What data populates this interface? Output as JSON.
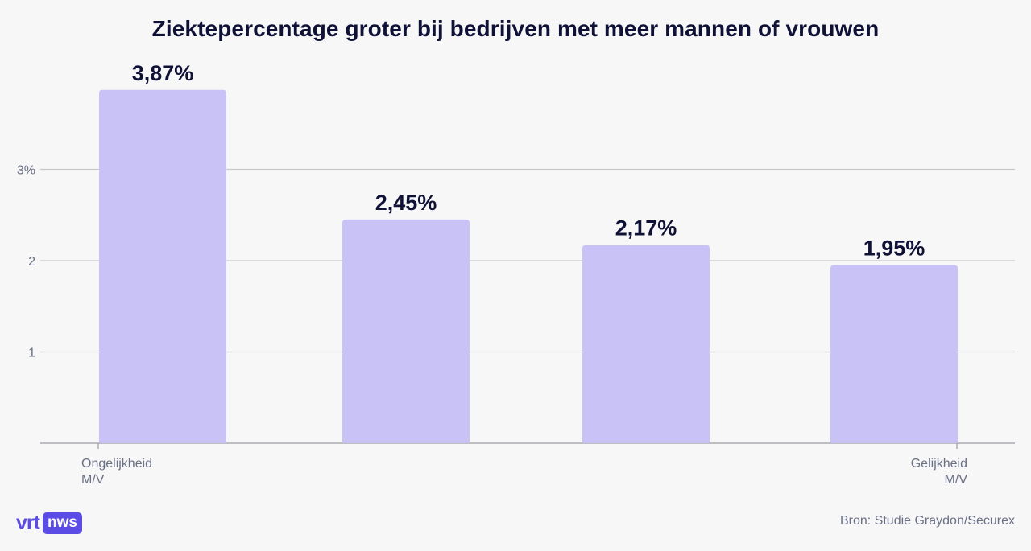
{
  "chart_data": {
    "type": "bar",
    "title": "Ziektepercentage groter bij bedrijven met meer mannen of vrouwen",
    "categories": [
      "",
      "",
      "",
      ""
    ],
    "values": [
      3.87,
      2.45,
      2.17,
      1.95
    ],
    "value_labels": [
      "3,87%",
      "2,45%",
      "2,17%",
      "1,95%"
    ],
    "y_ticks": [
      1,
      2,
      3
    ],
    "y_tick_labels": [
      "1",
      "2",
      "3%"
    ],
    "ylim": [
      0,
      4.2
    ],
    "grid": true,
    "bar_color": "#c9c2f7",
    "x_axis_left_label": [
      "Ongelijkheid",
      "M/V"
    ],
    "x_axis_right_label": [
      "Gelijkheid",
      "M/V"
    ]
  },
  "logo": {
    "vrt": "vrt",
    "nws": "nws"
  },
  "source": "Bron: Studie Graydon/Securex",
  "colors": {
    "background": "#f8f7f8",
    "title": "#0f1236",
    "label": "#0f1236",
    "axis_text": "#6a7086",
    "grid": "#c8c8cc",
    "brand": "#5b4ce6"
  }
}
